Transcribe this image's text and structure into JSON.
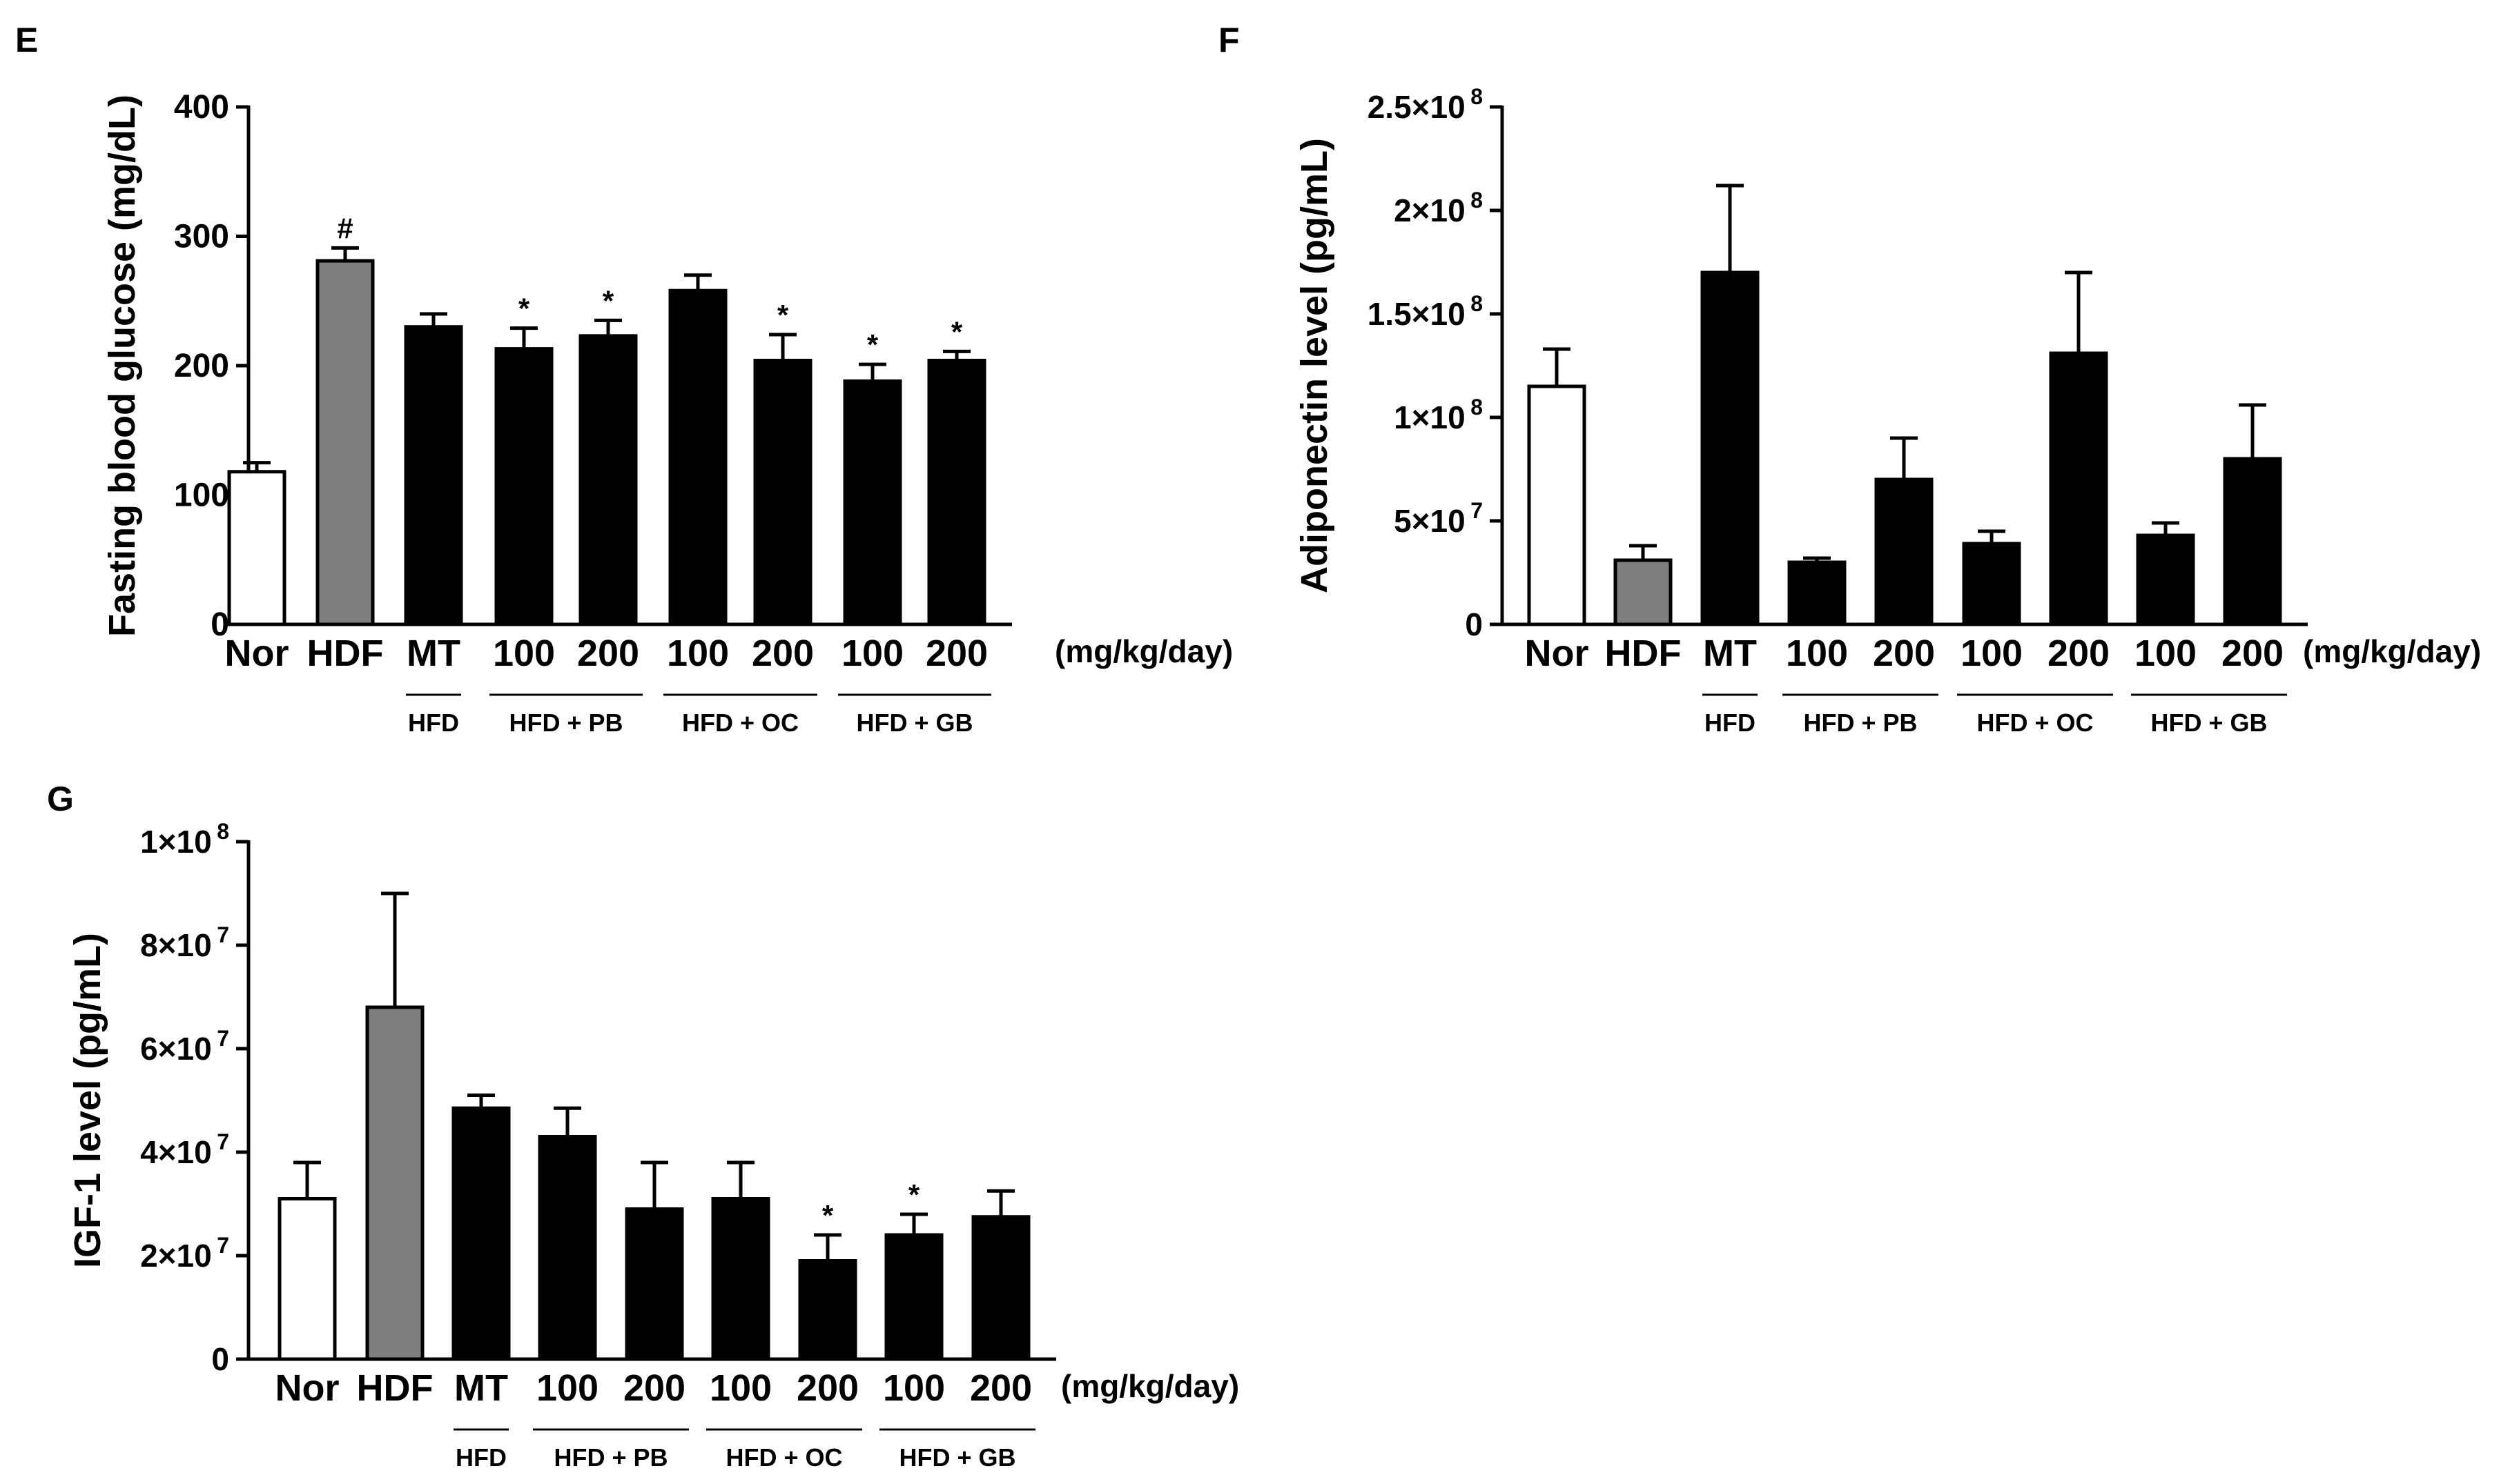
{
  "figure": {
    "colors": {
      "white_bar": "#ffffff",
      "gray_bar": "#7f7f7f",
      "black_bar": "#000000",
      "axis": "#000000"
    }
  },
  "chart_data": [
    {
      "panel": "E",
      "type": "bar",
      "ylabel": "Fasting blood glucose (mg/dL)",
      "ylim": [
        0,
        400
      ],
      "yticks": [
        {
          "value": 0,
          "label": "0"
        },
        {
          "value": 100,
          "label": "100"
        },
        {
          "value": 200,
          "label": "200"
        },
        {
          "value": 300,
          "label": "300"
        },
        {
          "value": 400,
          "label": "400"
        }
      ],
      "categories": [
        "Nor",
        "HDF",
        "MT",
        "100",
        "200",
        "100",
        "200",
        "100",
        "200"
      ],
      "values": [
        118,
        281,
        230,
        213,
        223,
        258,
        204,
        188,
        204
      ],
      "errors": [
        7,
        10,
        10,
        16,
        12,
        12,
        20,
        13,
        7
      ],
      "annotations": [
        "",
        "#",
        "",
        "*",
        "*",
        "",
        "*",
        "*",
        "*"
      ],
      "bar_colors": [
        "white",
        "gray",
        "black",
        "black",
        "black",
        "black",
        "black",
        "black",
        "black"
      ],
      "unit_label": "(mg/kg/day)",
      "groups": [
        {
          "label": "HFD",
          "from": 2,
          "to": 2
        },
        {
          "label": "HFD + PB",
          "from": 3,
          "to": 4
        },
        {
          "label": "HFD + OC",
          "from": 5,
          "to": 6
        },
        {
          "label": "HFD + GB",
          "from": 7,
          "to": 8
        }
      ]
    },
    {
      "panel": "F",
      "type": "bar",
      "ylabel": "Adiponectin level  (pg/mL)",
      "ylim": [
        0,
        250000000
      ],
      "yticks": [
        {
          "value": 0,
          "mant": "0",
          "exp": ""
        },
        {
          "value": 50000000,
          "mant": "5×10",
          "exp": "7"
        },
        {
          "value": 100000000,
          "mant": "1×10",
          "exp": "8"
        },
        {
          "value": 150000000,
          "mant": "1.5×10",
          "exp": "8"
        },
        {
          "value": 200000000,
          "mant": "2×10",
          "exp": "8"
        },
        {
          "value": 250000000,
          "mant": "2.5×10",
          "exp": "8"
        }
      ],
      "categories": [
        "Nor",
        "HDF",
        "MT",
        "100",
        "200",
        "100",
        "200",
        "100",
        "200"
      ],
      "values": [
        115000000,
        31000000,
        170000000,
        30000000,
        70000000,
        39000000,
        131000000,
        43000000,
        80000000
      ],
      "errors": [
        18000000,
        7000000,
        42000000,
        2000000,
        20000000,
        6000000,
        39000000,
        6000000,
        26000000
      ],
      "annotations": [
        "",
        "",
        "",
        "",
        "",
        "",
        "",
        "",
        ""
      ],
      "bar_colors": [
        "white",
        "gray",
        "black",
        "black",
        "black",
        "black",
        "black",
        "black",
        "black"
      ],
      "unit_label": "(mg/kg/day)",
      "groups": [
        {
          "label": "HFD",
          "from": 2,
          "to": 2
        },
        {
          "label": "HFD + PB",
          "from": 3,
          "to": 4
        },
        {
          "label": "HFD + OC",
          "from": 5,
          "to": 6
        },
        {
          "label": "HFD + GB",
          "from": 7,
          "to": 8
        }
      ]
    },
    {
      "panel": "G",
      "type": "bar",
      "ylabel": "IGF-1 level (pg/mL)",
      "ylim": [
        0,
        100000000
      ],
      "yticks": [
        {
          "value": 0,
          "mant": "0",
          "exp": ""
        },
        {
          "value": 20000000,
          "mant": "2×10",
          "exp": "7"
        },
        {
          "value": 40000000,
          "mant": "4×10",
          "exp": "7"
        },
        {
          "value": 60000000,
          "mant": "6×10",
          "exp": "7"
        },
        {
          "value": 80000000,
          "mant": "8×10",
          "exp": "7"
        },
        {
          "value": 100000000,
          "mant": "1×10",
          "exp": "8"
        }
      ],
      "categories": [
        "Nor",
        "HDF",
        "MT",
        "100",
        "200",
        "100",
        "200",
        "100",
        "200"
      ],
      "values": [
        31000000,
        68000000,
        48500000,
        43000000,
        29000000,
        31000000,
        19000000,
        24000000,
        27500000
      ],
      "errors": [
        7000000,
        22000000,
        2500000,
        5500000,
        9000000,
        7000000,
        5000000,
        4000000,
        5000000
      ],
      "annotations": [
        "",
        "",
        "",
        "",
        "",
        "",
        "*",
        "*",
        ""
      ],
      "bar_colors": [
        "white",
        "gray",
        "black",
        "black",
        "black",
        "black",
        "black",
        "black",
        "black"
      ],
      "unit_label": "(mg/kg/day)",
      "groups": [
        {
          "label": "HFD",
          "from": 2,
          "to": 2
        },
        {
          "label": "HFD + PB",
          "from": 3,
          "to": 4
        },
        {
          "label": "HFD + OC",
          "from": 5,
          "to": 6
        },
        {
          "label": "HFD + GB",
          "from": 7,
          "to": 8
        }
      ]
    }
  ]
}
